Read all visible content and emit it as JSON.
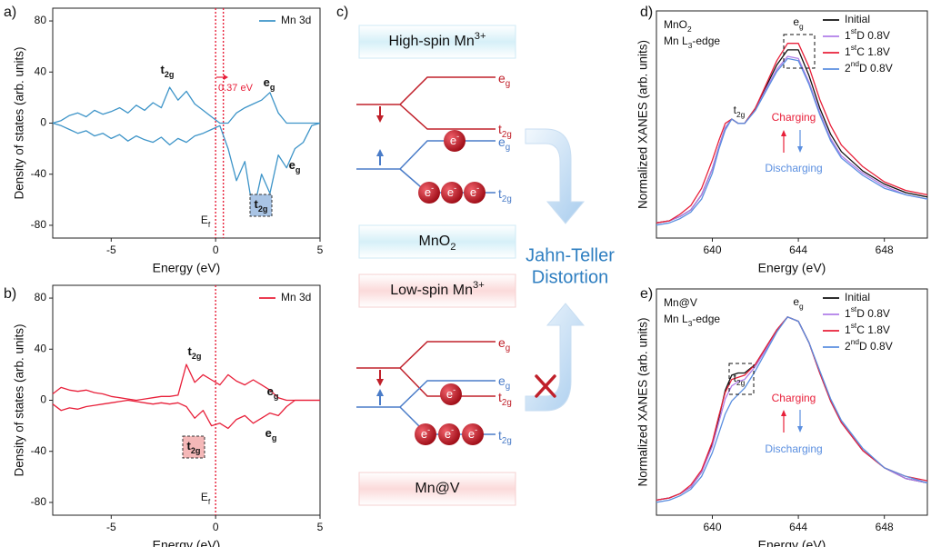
{
  "chart_data": [
    {
      "type": "line",
      "panel": "a)",
      "sample": "MnO2",
      "xlabel": "Energy (eV)",
      "ylabel": "Density of states (arb. units)",
      "xlim": [
        -7.8,
        5
      ],
      "ylim": [
        -90,
        90
      ],
      "xticks": [
        -5,
        0,
        5
      ],
      "yticks": [
        -80,
        -40,
        0,
        40,
        80
      ],
      "vlines": [
        0,
        0.37
      ],
      "x": [
        -7.8,
        -7.4,
        -7.0,
        -6.6,
        -6.2,
        -5.8,
        -5.4,
        -5.0,
        -4.6,
        -4.2,
        -3.8,
        -3.4,
        -3.0,
        -2.6,
        -2.2,
        -1.8,
        -1.4,
        -1.0,
        -0.6,
        -0.2,
        0.2,
        0.6,
        1.0,
        1.4,
        1.8,
        2.2,
        2.6,
        3.0,
        3.4,
        3.8,
        4.2,
        4.6,
        5.0
      ],
      "series": [
        {
          "name": "Mn 3d",
          "color": "#3d94c8",
          "values": [
            0,
            2,
            6,
            8,
            5,
            10,
            7,
            9,
            12,
            8,
            14,
            10,
            16,
            12,
            28,
            18,
            25,
            15,
            10,
            5,
            0,
            0,
            8,
            12,
            15,
            18,
            24,
            8,
            0,
            0,
            0,
            0,
            0
          ]
        },
        {
          "color": "#3d94c8",
          "values": [
            0,
            -2,
            -5,
            -8,
            -6,
            -10,
            -8,
            -12,
            -9,
            -14,
            -10,
            -13,
            -15,
            -11,
            -17,
            -12,
            -15,
            -10,
            -8,
            -5,
            -2,
            -20,
            -45,
            -30,
            -70,
            -40,
            -55,
            -25,
            -35,
            -20,
            -15,
            -2,
            0
          ]
        }
      ],
      "annotations": [
        "t2g",
        "eg",
        "eg",
        "t2g",
        "0.37 eV",
        "Ef"
      ]
    },
    {
      "type": "line",
      "panel": "b)",
      "sample": "Mn@V",
      "xlabel": "Energy (eV)",
      "ylabel": "Density of states (arb. units)",
      "xlim": [
        -7.8,
        5
      ],
      "ylim": [
        -90,
        90
      ],
      "xticks": [
        -5,
        0,
        5
      ],
      "yticks": [
        -80,
        -40,
        0,
        40,
        80
      ],
      "vlines": [
        0
      ],
      "x": [
        -7.8,
        -7.4,
        -7.0,
        -6.6,
        -6.2,
        -5.8,
        -5.4,
        -5.0,
        -4.6,
        -4.2,
        -3.8,
        -3.4,
        -3.0,
        -2.6,
        -2.2,
        -1.8,
        -1.4,
        -1.0,
        -0.6,
        -0.2,
        0.2,
        0.6,
        1.0,
        1.4,
        1.8,
        2.2,
        2.6,
        3.0,
        3.4,
        3.8,
        4.2,
        4.6,
        5.0
      ],
      "series": [
        {
          "name": "Mn 3d",
          "color": "#e8203a",
          "values": [
            5,
            10,
            8,
            7,
            8,
            6,
            5,
            3,
            2,
            1,
            0,
            1,
            2,
            3,
            3,
            4,
            28,
            14,
            20,
            16,
            12,
            20,
            15,
            12,
            16,
            12,
            8,
            2,
            0,
            0,
            0,
            0,
            0
          ]
        },
        {
          "color": "#e8203a",
          "values": [
            -3,
            -8,
            -6,
            -7,
            -5,
            -4,
            -3,
            -2,
            -1,
            0,
            -1,
            -2,
            -3,
            -2,
            -3,
            -2,
            -5,
            -14,
            -8,
            -20,
            -18,
            -22,
            -15,
            -12,
            -18,
            -14,
            -10,
            -12,
            -5,
            0,
            0,
            0,
            0
          ]
        }
      ],
      "annotations": [
        "t2g",
        "eg",
        "eg",
        "t2g",
        "Ef"
      ]
    },
    {
      "type": "line",
      "panel": "d)",
      "xlabel": "Energy (eV)",
      "ylabel": "Normalized XANES (arb. units)",
      "xlim": [
        637.4,
        650
      ],
      "ylim": [
        0,
        1.05
      ],
      "xticks": [
        640,
        644,
        648
      ],
      "x": [
        637.4,
        638,
        638.5,
        639,
        639.5,
        640,
        640.3,
        640.6,
        640.9,
        641.2,
        641.5,
        642,
        642.5,
        643,
        643.5,
        644,
        644.5,
        645,
        645.5,
        646,
        647,
        648,
        649,
        650
      ],
      "series": [
        {
          "name": "Initial",
          "color": "#111111",
          "values": [
            0.07,
            0.08,
            0.1,
            0.13,
            0.2,
            0.32,
            0.42,
            0.51,
            0.55,
            0.53,
            0.53,
            0.6,
            0.7,
            0.8,
            0.87,
            0.87,
            0.75,
            0.6,
            0.48,
            0.4,
            0.31,
            0.25,
            0.21,
            0.19
          ]
        },
        {
          "name": "1stD 0.8V",
          "color": "#b07ee8",
          "values": [
            0.07,
            0.08,
            0.1,
            0.13,
            0.2,
            0.32,
            0.42,
            0.51,
            0.55,
            0.53,
            0.53,
            0.59,
            0.69,
            0.78,
            0.84,
            0.83,
            0.72,
            0.58,
            0.46,
            0.38,
            0.3,
            0.24,
            0.2,
            0.18
          ]
        },
        {
          "name": "1stC 1.8V",
          "color": "#e8203a",
          "values": [
            0.07,
            0.08,
            0.11,
            0.15,
            0.23,
            0.36,
            0.45,
            0.53,
            0.55,
            0.53,
            0.53,
            0.6,
            0.71,
            0.82,
            0.9,
            0.9,
            0.79,
            0.64,
            0.52,
            0.43,
            0.33,
            0.26,
            0.22,
            0.2
          ]
        },
        {
          "name": "2ndD 0.8V",
          "color": "#5b8fe0",
          "values": [
            0.06,
            0.07,
            0.09,
            0.12,
            0.18,
            0.3,
            0.41,
            0.5,
            0.55,
            0.53,
            0.53,
            0.59,
            0.68,
            0.77,
            0.83,
            0.82,
            0.71,
            0.57,
            0.45,
            0.37,
            0.29,
            0.23,
            0.2,
            0.18
          ]
        }
      ],
      "annotations": [
        "MnO2",
        "Mn L3-edge",
        "eg",
        "t2g",
        "Charging",
        "Discharging"
      ]
    },
    {
      "type": "line",
      "panel": "e)",
      "xlabel": "Energy (eV)",
      "ylabel": "Normalized XANES (arb. units)",
      "xlim": [
        637.4,
        650
      ],
      "ylim": [
        0,
        1.05
      ],
      "xticks": [
        640,
        644,
        648
      ],
      "x": [
        637.4,
        638,
        638.5,
        639,
        639.5,
        640,
        640.3,
        640.6,
        640.9,
        641.2,
        641.5,
        642,
        642.5,
        643,
        643.5,
        644,
        644.5,
        645,
        645.5,
        646,
        647,
        648,
        649,
        650
      ],
      "series": [
        {
          "name": "Initial",
          "color": "#111111",
          "values": [
            0.07,
            0.08,
            0.1,
            0.13,
            0.2,
            0.33,
            0.45,
            0.58,
            0.65,
            0.66,
            0.66,
            0.7,
            0.78,
            0.86,
            0.92,
            0.9,
            0.8,
            0.66,
            0.53,
            0.43,
            0.3,
            0.22,
            0.17,
            0.15
          ]
        },
        {
          "name": "1stD 0.8V",
          "color": "#b07ee8",
          "values": [
            0.07,
            0.08,
            0.1,
            0.13,
            0.2,
            0.32,
            0.43,
            0.54,
            0.6,
            0.62,
            0.63,
            0.69,
            0.77,
            0.86,
            0.92,
            0.9,
            0.8,
            0.66,
            0.53,
            0.43,
            0.3,
            0.22,
            0.17,
            0.15
          ]
        },
        {
          "name": "1stC 1.8V",
          "color": "#e8203a",
          "values": [
            0.07,
            0.08,
            0.1,
            0.14,
            0.21,
            0.34,
            0.46,
            0.57,
            0.63,
            0.64,
            0.65,
            0.7,
            0.78,
            0.86,
            0.92,
            0.9,
            0.8,
            0.66,
            0.53,
            0.43,
            0.3,
            0.22,
            0.18,
            0.16
          ]
        },
        {
          "name": "2ndD 0.8V",
          "color": "#5b8fe0",
          "values": [
            0.06,
            0.07,
            0.09,
            0.12,
            0.18,
            0.29,
            0.38,
            0.47,
            0.53,
            0.56,
            0.59,
            0.67,
            0.76,
            0.85,
            0.92,
            0.9,
            0.8,
            0.67,
            0.54,
            0.44,
            0.31,
            0.22,
            0.18,
            0.15
          ]
        }
      ],
      "annotations": [
        "Mn@V",
        "Mn L3-edge",
        "eg",
        "t2g",
        "Charging",
        "Discharging"
      ]
    }
  ],
  "diagram": {
    "panel": "c)",
    "boxes": [
      "High-spin Mn3+",
      "MnO2",
      "Low-spin Mn3+",
      "Mn@V"
    ],
    "levels": [
      "eg",
      "t2g",
      "eg",
      "t2g",
      "eg",
      "t2g",
      "eg",
      "t2g"
    ],
    "electron": "e-",
    "caption": [
      "Jahn-Teller",
      "Distortion"
    ]
  }
}
